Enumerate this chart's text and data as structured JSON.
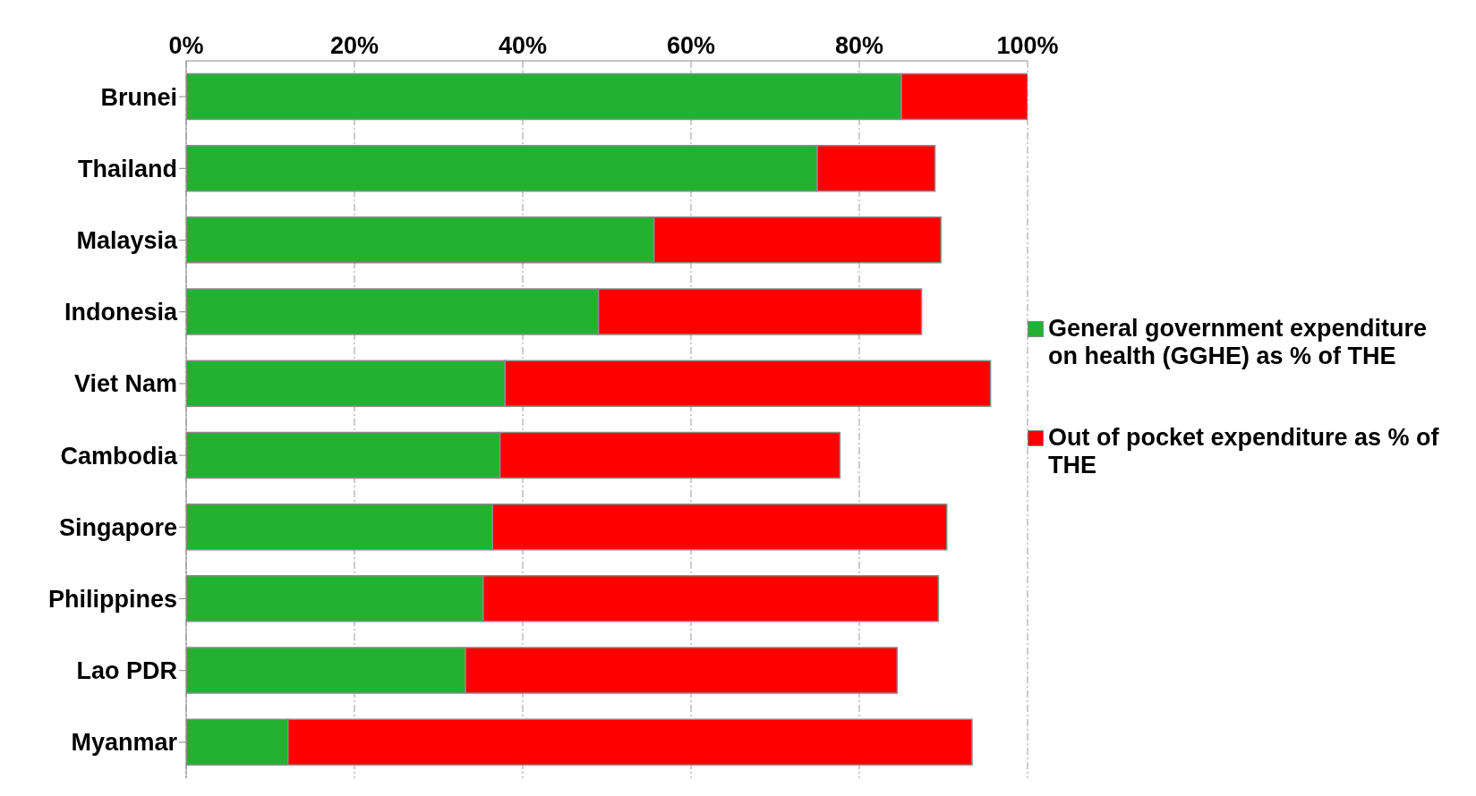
{
  "chart_data": {
    "type": "bar",
    "orientation": "horizontal",
    "stacked": true,
    "categories": [
      "Brunei",
      "Thailand",
      "Malaysia",
      "Indonesia",
      "Viet Nam",
      "Cambodia",
      "Singapore",
      "Philippines",
      "Lao PDR",
      "Myanmar"
    ],
    "series": [
      {
        "name": "General government expenditure on health (GGHE) as % of THE",
        "color": "#22b232",
        "values": [
          85,
          75,
          55.6,
          49,
          37.9,
          37.3,
          36.4,
          35.3,
          33.2,
          12.1
        ]
      },
      {
        "name": "Out of pocket expenditure as % of THE",
        "color": "#ff0000",
        "values": [
          15,
          14,
          34.1,
          38.4,
          57.7,
          40.4,
          54,
          54.1,
          51.3,
          81.3
        ]
      }
    ],
    "xlim": [
      0,
      100
    ],
    "xticks": [
      {
        "value": 0,
        "label": "0%"
      },
      {
        "value": 20,
        "label": "20%"
      },
      {
        "value": 40,
        "label": "40%"
      },
      {
        "value": 60,
        "label": "60%"
      },
      {
        "value": 80,
        "label": "80%"
      },
      {
        "value": 100,
        "label": "100%"
      }
    ],
    "grid": "x",
    "legend": "right"
  }
}
